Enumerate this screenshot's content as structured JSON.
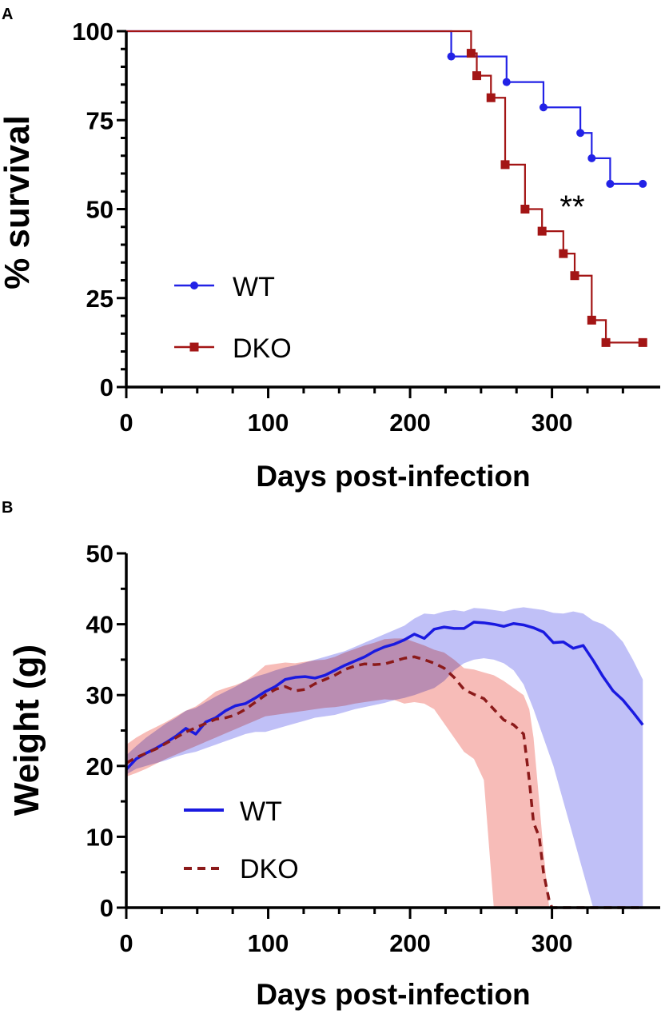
{
  "chart_data": [
    {
      "panel": "A",
      "type": "line",
      "subtype": "kaplan-meier",
      "title": "",
      "xlabel": "Days post-infection",
      "ylabel": "% survival",
      "xlim": [
        0,
        365
      ],
      "ylim": [
        0,
        100
      ],
      "xticks": [
        0,
        100,
        200,
        300
      ],
      "xtick_labels": [
        "0",
        "100",
        "200",
        "300"
      ],
      "yticks": [
        0,
        25,
        50,
        75,
        100
      ],
      "ytick_labels": [
        "0",
        "25",
        "50",
        "75",
        "100"
      ],
      "annotation": "**",
      "legend_placement": "bottom-left",
      "series": [
        {
          "name": "WT",
          "color": "#2222e6",
          "marker": "circle",
          "steps": [
            [
              0,
              100
            ],
            [
              229,
              92.9
            ],
            [
              268,
              85.7
            ],
            [
              294,
              78.6
            ],
            [
              320,
              71.4
            ],
            [
              328,
              64.3
            ],
            [
              341,
              57.1
            ],
            [
              364,
              57.1
            ]
          ],
          "markers": [
            [
              229,
              92.9
            ],
            [
              268,
              85.7
            ],
            [
              294,
              78.6
            ],
            [
              320,
              71.4
            ],
            [
              328,
              64.3
            ],
            [
              341,
              57.1
            ],
            [
              364,
              57.1
            ]
          ]
        },
        {
          "name": "DKO",
          "color": "#a31515",
          "marker": "square",
          "steps": [
            [
              0,
              100
            ],
            [
              243,
              93.8
            ],
            [
              247,
              87.5
            ],
            [
              257,
              81.3
            ],
            [
              267,
              62.5
            ],
            [
              281,
              50
            ],
            [
              293,
              43.8
            ],
            [
              308,
              37.5
            ],
            [
              316,
              31.3
            ],
            [
              328,
              18.8
            ],
            [
              338,
              12.5
            ],
            [
              364,
              12.5
            ]
          ],
          "markers": [
            [
              243,
              93.8
            ],
            [
              247,
              87.5
            ],
            [
              257,
              81.3
            ],
            [
              267,
              62.5
            ],
            [
              281,
              50
            ],
            [
              293,
              43.8
            ],
            [
              308,
              37.5
            ],
            [
              316,
              31.3
            ],
            [
              328,
              18.8
            ],
            [
              338,
              12.5
            ],
            [
              364,
              12.5
            ]
          ]
        }
      ]
    },
    {
      "panel": "B",
      "type": "area",
      "title": "",
      "xlabel": "Days post-infection",
      "ylabel": "Weight (g)",
      "xlim": [
        0,
        365
      ],
      "ylim": [
        0,
        50
      ],
      "xticks": [
        0,
        100,
        200,
        300
      ],
      "xtick_labels": [
        "0",
        "100",
        "200",
        "300"
      ],
      "yticks": [
        0,
        10,
        20,
        30,
        40,
        50
      ],
      "ytick_labels": [
        "0",
        "10",
        "20",
        "30",
        "40",
        "50"
      ],
      "legend_placement": "bottom-left",
      "series": [
        {
          "name": "WT",
          "color": "#1a1ae0",
          "band_color": "#8c8cf0",
          "line_style": "solid",
          "x": [
            0,
            7,
            14,
            21,
            28,
            35,
            42,
            49,
            56,
            63,
            70,
            77,
            84,
            91,
            98,
            105,
            112,
            119,
            126,
            133,
            140,
            147,
            154,
            161,
            168,
            175,
            182,
            189,
            196,
            203,
            210,
            217,
            224,
            231,
            238,
            245,
            252,
            259,
            266,
            273,
            280,
            287,
            294,
            301,
            308,
            315,
            322,
            329,
            336,
            343,
            350,
            357,
            364
          ],
          "mean": [
            19.5,
            21,
            21.8,
            22.5,
            23.3,
            24.2,
            25.3,
            24.5,
            26.2,
            26.8,
            27.8,
            28.5,
            28.8,
            29.6,
            30.5,
            31.2,
            32.2,
            32.5,
            32.6,
            32.4,
            32.8,
            33.5,
            34.2,
            34.8,
            35.4,
            36.2,
            36.8,
            37.2,
            37.8,
            38.6,
            38,
            39.3,
            39.6,
            39.4,
            39.4,
            40.3,
            40.2,
            40,
            39.7,
            40.1,
            39.9,
            39.5,
            38.9,
            37.4,
            37.5,
            36.6,
            37,
            34.9,
            32.6,
            30.6,
            29.3,
            27.6,
            25.8
          ],
          "upper": [
            21.5,
            22.8,
            24,
            25,
            26,
            26.8,
            27.8,
            28.2,
            29,
            29.8,
            30.5,
            31.2,
            32,
            32.6,
            33,
            33.5,
            33.9,
            34.2,
            34.6,
            35,
            35.4,
            35.8,
            36.2,
            36.8,
            37.4,
            38,
            38.6,
            39.2,
            39.8,
            40.8,
            41.5,
            41.4,
            41.8,
            42,
            41.8,
            42.3,
            42.2,
            42,
            41.8,
            42.2,
            42.4,
            42.2,
            42,
            41.6,
            41.5,
            41.8,
            41.5,
            40.5,
            40,
            39,
            37.5,
            35,
            32.2
          ],
          "lower": [
            18.8,
            19.6,
            20,
            20.4,
            20.8,
            21.3,
            21.7,
            22,
            22.5,
            23,
            23.5,
            24,
            24.5,
            24.8,
            24.8,
            25.2,
            25.6,
            26,
            26.4,
            26.8,
            27,
            27.2,
            27.6,
            28,
            28.3,
            28.6,
            28.9,
            29.3,
            29.6,
            30,
            30.5,
            31,
            32,
            33.5,
            34.5,
            35,
            35.2,
            35,
            34.5,
            33.5,
            31.5,
            28,
            24,
            20,
            15,
            10,
            5,
            0,
            0,
            0,
            0,
            0,
            0
          ]
        },
        {
          "name": "DKO",
          "color": "#8b1a1a",
          "band_color": "#f4a6a0",
          "line_style": "dashed",
          "x": [
            0,
            7,
            14,
            21,
            28,
            35,
            42,
            49,
            56,
            63,
            70,
            77,
            84,
            91,
            98,
            105,
            112,
            119,
            126,
            133,
            140,
            147,
            154,
            161,
            168,
            175,
            182,
            189,
            196,
            203,
            210,
            217,
            224,
            231,
            238,
            245,
            252,
            259,
            266,
            273,
            280,
            284,
            287,
            291,
            294,
            298,
            300,
            305,
            312,
            320,
            330,
            340,
            350,
            360,
            364
          ],
          "mean": [
            20.4,
            21.2,
            21.8,
            22.4,
            23.2,
            24,
            24.8,
            25.4,
            26,
            26.6,
            26.8,
            27.2,
            28,
            29,
            30,
            30.8,
            31.2,
            30.6,
            30.8,
            31.6,
            32.2,
            32.8,
            33.6,
            34.1,
            34.4,
            34.3,
            34.4,
            34.8,
            35.2,
            35.4,
            35,
            34.5,
            33.8,
            32.5,
            30.8,
            30.1,
            29.5,
            28,
            26.5,
            25.8,
            24.5,
            18,
            12,
            10,
            5,
            1,
            0,
            0,
            0,
            0,
            0,
            0,
            0,
            0,
            0
          ],
          "upper": [
            23,
            24,
            24.8,
            25.5,
            26.2,
            27,
            27.8,
            28.4,
            29.4,
            30.5,
            31,
            31.4,
            32,
            33,
            34.2,
            34.4,
            34.6,
            34.5,
            34.7,
            34.9,
            35,
            35.4,
            36,
            36.5,
            37,
            37.4,
            37.9,
            38,
            38,
            37.5,
            37,
            36.4,
            36,
            35,
            33.8,
            33.6,
            33.2,
            32.8,
            32,
            31,
            30,
            28,
            24,
            15,
            8,
            0,
            0,
            0,
            0,
            0,
            0,
            0,
            0,
            0,
            0
          ],
          "lower": [
            18.5,
            19,
            19.6,
            20.3,
            21,
            21.6,
            22.2,
            22.8,
            23.4,
            24,
            24.6,
            25.2,
            25.8,
            26.4,
            27,
            27.2,
            27.4,
            27.6,
            27.8,
            28,
            28.2,
            28.3,
            28.5,
            28.8,
            29,
            29.2,
            29.4,
            29.3,
            28.8,
            29,
            28.8,
            28,
            26,
            24,
            22,
            21,
            18,
            0,
            0,
            0,
            0,
            0,
            0,
            0,
            0,
            0,
            0,
            0,
            0,
            0,
            0,
            0,
            0,
            0,
            0
          ]
        }
      ]
    }
  ],
  "panel_labels": {
    "a": "A",
    "b": "B"
  }
}
